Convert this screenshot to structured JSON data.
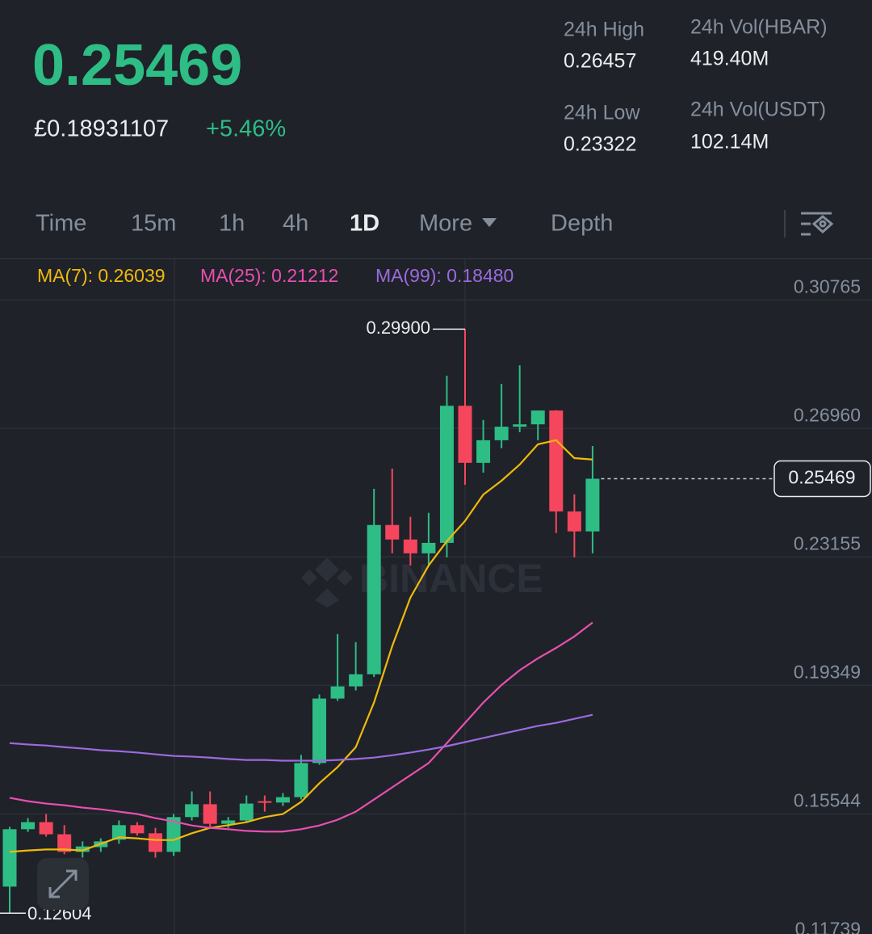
{
  "header": {
    "price": "0.25469",
    "fiat_price": "£0.18931107",
    "change": "+5.46%",
    "stats": [
      {
        "label": "24h High",
        "value": "0.26457"
      },
      {
        "label": "24h Vol(HBAR)",
        "value": "419.40M"
      },
      {
        "label": "24h Low",
        "value": "0.23322"
      },
      {
        "label": "24h Vol(USDT)",
        "value": "102.14M"
      }
    ]
  },
  "tabs": {
    "items": [
      "Time",
      "15m",
      "1h",
      "4h",
      "1D",
      "More",
      "Depth"
    ],
    "active": "1D"
  },
  "chart_data": {
    "type": "candlestick",
    "watermark": "BINANCE",
    "up_color": "#2ebd85",
    "down_color": "#f6465d",
    "ylim": [
      0.117,
      0.3199
    ],
    "yticks": [
      {
        "value": 0.30765,
        "label": "0.30765"
      },
      {
        "value": 0.2696,
        "label": "0.26960"
      },
      {
        "value": 0.23155,
        "label": "0.23155"
      },
      {
        "value": 0.19349,
        "label": "0.19349"
      },
      {
        "value": 0.15544,
        "label": "0.15544"
      },
      {
        "value": 0.11739,
        "label": "0.11739"
      }
    ],
    "grid": true,
    "ohlc": {
      "open": [
        0.1339,
        0.1509,
        0.153,
        0.1494,
        0.1442,
        0.1456,
        0.1478,
        0.1521,
        0.1497,
        0.1442,
        0.1545,
        0.1583,
        0.1525,
        0.1535,
        0.1592,
        0.1588,
        0.1604,
        0.1705,
        0.1896,
        0.1932,
        0.1968,
        0.241,
        0.2367,
        0.2326,
        0.2357,
        0.2763,
        0.2594,
        0.2661,
        0.2701,
        0.2708,
        0.2749,
        0.245,
        0.2391
      ],
      "high": [
        0.1516,
        0.1542,
        0.1554,
        0.1521,
        0.1473,
        0.1482,
        0.1535,
        0.153,
        0.1513,
        0.1554,
        0.1621,
        0.1621,
        0.1545,
        0.1609,
        0.1609,
        0.1616,
        0.1729,
        0.1908,
        0.2087,
        0.2063,
        0.2517,
        0.2577,
        0.2434,
        0.2446,
        0.2852,
        0.299,
        0.2721,
        0.2828,
        0.2883,
        0.2749,
        0.275,
        0.2501,
        0.2644
      ],
      "low": [
        0.12604,
        0.1501,
        0.1487,
        0.1435,
        0.1425,
        0.1442,
        0.1466,
        0.149,
        0.1425,
        0.143,
        0.1535,
        0.1513,
        0.1513,
        0.153,
        0.1561,
        0.1578,
        0.1597,
        0.17,
        0.1889,
        0.192,
        0.196,
        0.2326,
        0.229,
        0.229,
        0.2314,
        0.2529,
        0.2565,
        0.2637,
        0.2685,
        0.2661,
        0.2386,
        0.2314,
        0.2326
      ],
      "close": [
        0.1509,
        0.153,
        0.1494,
        0.1442,
        0.1458,
        0.1473,
        0.1521,
        0.1497,
        0.1442,
        0.1545,
        0.1583,
        0.1525,
        0.1535,
        0.1585,
        0.1588,
        0.1604,
        0.1705,
        0.1896,
        0.1932,
        0.1968,
        0.241,
        0.2367,
        0.2326,
        0.2357,
        0.2763,
        0.2594,
        0.2661,
        0.2701,
        0.2708,
        0.2749,
        0.245,
        0.2391,
        0.25469
      ]
    },
    "series": [
      {
        "name": "MA(7): 0.26039",
        "color": "#f0b90b",
        "values": [
          0.1442,
          0.1446,
          0.1449,
          0.1449,
          0.1446,
          0.1466,
          0.1485,
          0.1482,
          0.1477,
          0.1477,
          0.1497,
          0.1513,
          0.1521,
          0.153,
          0.1545,
          0.1554,
          0.159,
          0.1645,
          0.1693,
          0.1752,
          0.1884,
          0.2051,
          0.2195,
          0.229,
          0.2362,
          0.2422,
          0.25,
          0.2541,
          0.2589,
          0.2649,
          0.2661,
          0.2608,
          0.26039
        ]
      },
      {
        "name": "MA(25): 0.21212",
        "color": "#e84fb0",
        "values": [
          0.1602,
          0.1592,
          0.1585,
          0.158,
          0.1573,
          0.1568,
          0.1561,
          0.1554,
          0.1542,
          0.1532,
          0.152,
          0.1513,
          0.1509,
          0.1504,
          0.1502,
          0.1502,
          0.1509,
          0.152,
          0.1537,
          0.1561,
          0.1597,
          0.1633,
          0.1669,
          0.1705,
          0.1764,
          0.1824,
          0.1884,
          0.1936,
          0.198,
          0.2015,
          0.2046,
          0.208,
          0.21212
        ]
      },
      {
        "name": "MA(99): 0.18480",
        "color": "#9c6ade",
        "values": [
          0.1764,
          0.176,
          0.1757,
          0.1752,
          0.1748,
          0.1743,
          0.174,
          0.1736,
          0.1731,
          0.1726,
          0.1724,
          0.1721,
          0.1717,
          0.1714,
          0.1714,
          0.1712,
          0.1712,
          0.1712,
          0.1714,
          0.1717,
          0.1721,
          0.1728,
          0.1736,
          0.1745,
          0.1755,
          0.1767,
          0.1779,
          0.1791,
          0.1803,
          0.1815,
          0.1824,
          0.1836,
          0.1848
        ]
      }
    ],
    "max_label": {
      "value": 0.299,
      "label": "0.29900"
    },
    "min_label": {
      "value": 0.12604,
      "label": "0.12604"
    },
    "last_price": {
      "value": 0.25469,
      "label": "0.25469"
    }
  }
}
